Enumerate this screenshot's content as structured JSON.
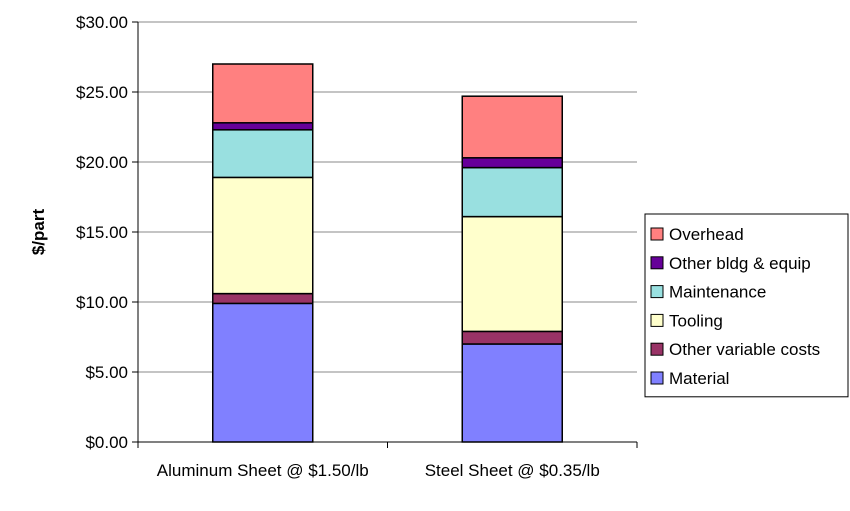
{
  "chart_data": {
    "type": "bar",
    "stacked": true,
    "categories": [
      "Aluminum Sheet @ $1.50/lb",
      "Steel Sheet @ $0.35/lb"
    ],
    "series": [
      {
        "name": "Material",
        "values": [
          9.9,
          7.0
        ],
        "color": "#8080ff"
      },
      {
        "name": "Other variable costs",
        "values": [
          0.7,
          0.9
        ],
        "color": "#993366"
      },
      {
        "name": "Tooling",
        "values": [
          8.3,
          8.2
        ],
        "color": "#ffffcc"
      },
      {
        "name": "Maintenance",
        "values": [
          3.4,
          3.5
        ],
        "color": "#99e0e0"
      },
      {
        "name": "Other bldg & equip",
        "values": [
          0.5,
          0.7
        ],
        "color": "#660099"
      },
      {
        "name": "Overhead",
        "values": [
          4.2,
          4.4
        ],
        "color": "#ff8080"
      }
    ],
    "ylabel": "$/part",
    "xlabel": "",
    "ylim": [
      0,
      30
    ],
    "yticks": [
      "$0.00",
      "$5.00",
      "$10.00",
      "$15.00",
      "$20.00",
      "$25.00",
      "$30.00"
    ],
    "ytick_values": [
      0,
      5,
      10,
      15,
      20,
      25,
      30
    ],
    "grid": true,
    "legend_position": "right",
    "legend_order": [
      "Overhead",
      "Other bldg & equip",
      "Maintenance",
      "Tooling",
      "Other variable costs",
      "Material"
    ]
  }
}
